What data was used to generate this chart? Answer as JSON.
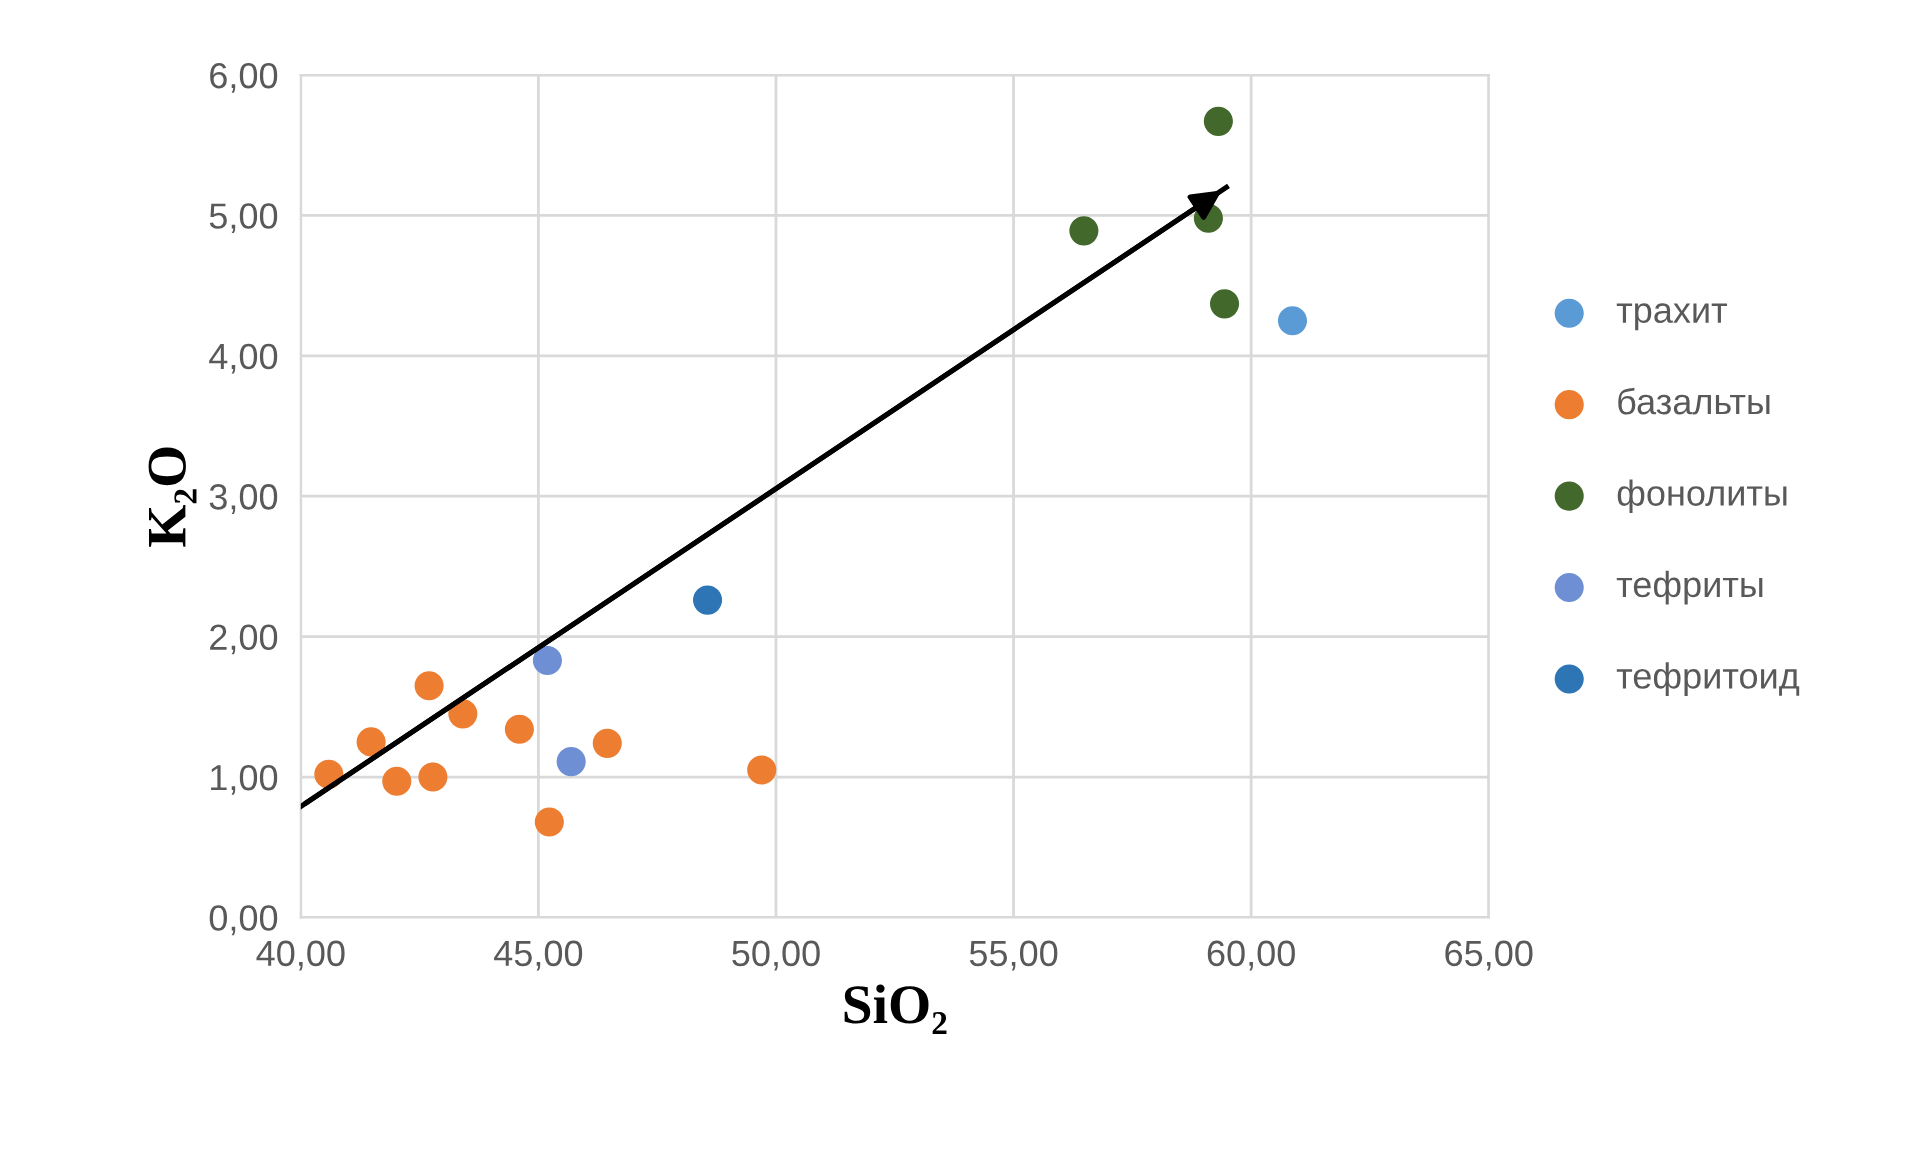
{
  "chart_data": {
    "type": "scatter",
    "xlabel": "SiO₂",
    "ylabel": "K₂O",
    "xlim": [
      40,
      65
    ],
    "ylim": [
      0,
      6
    ],
    "xticks": [
      {
        "value": 40,
        "label": "40,00"
      },
      {
        "value": 45,
        "label": "45,00"
      },
      {
        "value": 50,
        "label": "50,00"
      },
      {
        "value": 55,
        "label": "55,00"
      },
      {
        "value": 60,
        "label": "60,00"
      },
      {
        "value": 65,
        "label": "65,00"
      }
    ],
    "yticks": [
      {
        "value": 0,
        "label": "0,00"
      },
      {
        "value": 1,
        "label": "1,00"
      },
      {
        "value": 2,
        "label": "2,00"
      },
      {
        "value": 3,
        "label": "3,00"
      },
      {
        "value": 4,
        "label": "4,00"
      },
      {
        "value": 5,
        "label": "5,00"
      },
      {
        "value": 6,
        "label": "6,00"
      }
    ],
    "grid": true,
    "legend": "right",
    "marker": "circle",
    "series": [
      {
        "name": "трахит",
        "color": "#5b9bd5",
        "x": [
          60.87
        ],
        "values": [
          4.25
        ]
      },
      {
        "name": "базальты",
        "color": "#ed7d31",
        "x": [
          40.59,
          41.48,
          42.02,
          42.7,
          42.78,
          43.41,
          44.6,
          45.23,
          46.45,
          49.7
        ],
        "values": [
          1.02,
          1.25,
          0.97,
          1.65,
          1.0,
          1.45,
          1.34,
          0.68,
          1.24,
          1.05
        ]
      },
      {
        "name": "фонолиты",
        "color": "#43682b",
        "x": [
          56.48,
          59.1,
          59.31,
          59.44
        ],
        "values": [
          4.89,
          4.98,
          5.67,
          4.37
        ]
      },
      {
        "name": "тефриты",
        "color": "#6f8fd4",
        "x": [
          45.19,
          45.69
        ],
        "values": [
          1.83,
          1.11
        ]
      },
      {
        "name": "тефритоид",
        "color": "#2e75b6",
        "x": [
          48.56
        ],
        "values": [
          2.26
        ]
      },
      {
        "type": "line",
        "color": "#000000",
        "x": [
          40.0,
          59.48
        ],
        "values": [
          0.79,
          5.2
        ],
        "line_style": "solid",
        "marker": "none"
      }
    ]
  }
}
